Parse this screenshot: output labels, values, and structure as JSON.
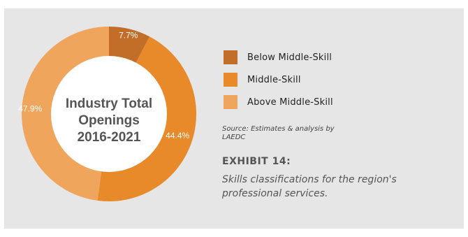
{
  "chart_data": {
    "type": "pie",
    "variant": "donut",
    "center_label": [
      "Industry Total",
      "Openings",
      "2016-2021"
    ],
    "categories": [
      "Below Middle-Skill",
      "Middle-Skill",
      "Above Middle-Skill"
    ],
    "values": [
      7.7,
      44.4,
      47.9
    ],
    "value_labels": [
      "7.7%",
      "44.4%",
      "47.9%"
    ],
    "colors": [
      "#c26d28",
      "#e8892a",
      "#efa65c"
    ],
    "legend_position": "right"
  },
  "source": "Source: Estimates & analysis by LAEDC",
  "exhibit": {
    "title": "EXHIBIT 14:",
    "caption": "Skills classifications for the region's professional services."
  }
}
